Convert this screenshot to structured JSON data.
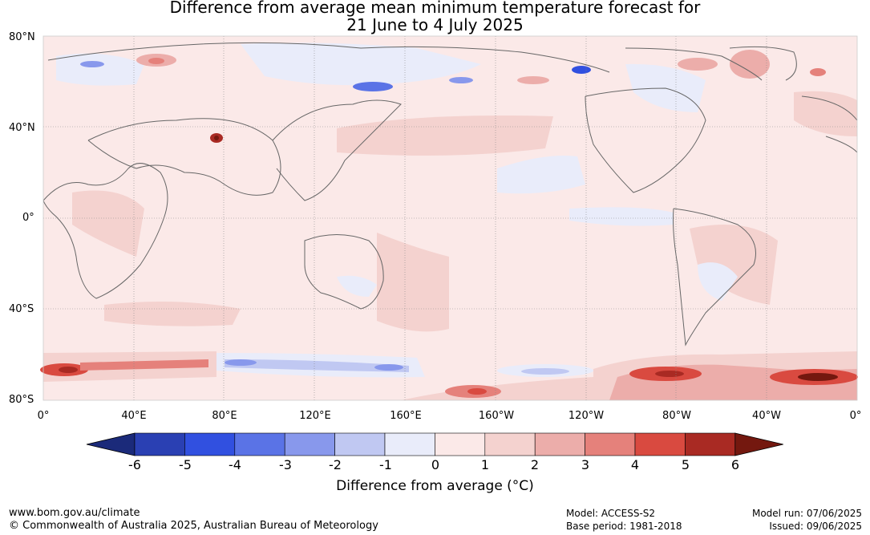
{
  "title_line1": "Difference from average mean minimum temperature forecast for",
  "title_line2": "21 June to 4 July 2025",
  "lat_labels": [
    "80°N",
    "40°N",
    "0°",
    "40°S",
    "80°S"
  ],
  "lon_labels": [
    "0°",
    "40°E",
    "80°E",
    "120°E",
    "160°E",
    "160°W",
    "120°W",
    "80°W",
    "40°W",
    "0°"
  ],
  "colorbar": {
    "ticks": [
      "-6",
      "-5",
      "-4",
      "-3",
      "-2",
      "-1",
      "0",
      "1",
      "2",
      "3",
      "4",
      "5",
      "6"
    ],
    "colors": [
      "#1b2a7a",
      "#2a40b3",
      "#3150e0",
      "#5a73e6",
      "#8898ec",
      "#c0c8f2",
      "#e9ecfa",
      "#fbe9e8",
      "#f4d2cf",
      "#ecadaa",
      "#e5817b",
      "#d94a40",
      "#a92a23",
      "#74180f"
    ],
    "label": "Difference from average (°C)"
  },
  "footer": {
    "website": "www.bom.gov.au/climate",
    "copyright": "© Commonwealth of Australia 2025, Australian Bureau of Meteorology",
    "model": "Model: ACCESS-S2",
    "base_period": "Base period: 1981-2018",
    "model_run": "Model run: 07/06/2025",
    "issued": "Issued: 09/06/2025"
  }
}
